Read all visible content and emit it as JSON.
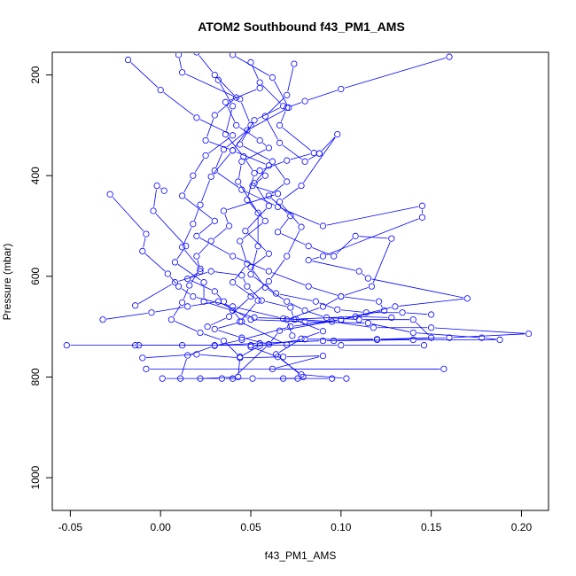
{
  "chart_data": {
    "type": "scatter",
    "title": "ATOM2 Southbound f43_PM1_AMS",
    "xlabel": "f43_PM1_AMS",
    "ylabel": "Pressure (mbar)",
    "xlim": [
      -0.06,
      0.215
    ],
    "ylim": [
      1065,
      155
    ],
    "y_reversed": true,
    "x_ticks": [
      {
        "value": -0.05,
        "label": "-0.05"
      },
      {
        "value": 0.0,
        "label": "0.00"
      },
      {
        "value": 0.05,
        "label": "0.05"
      },
      {
        "value": 0.1,
        "label": "0.10"
      },
      {
        "value": 0.15,
        "label": "0.15"
      },
      {
        "value": 0.2,
        "label": "0.20"
      }
    ],
    "y_ticks": [
      {
        "value": 200,
        "label": "200"
      },
      {
        "value": 400,
        "label": "400"
      },
      {
        "value": 600,
        "label": "600"
      },
      {
        "value": 800,
        "label": "800"
      },
      {
        "value": 1000,
        "label": "1000"
      }
    ],
    "marker": "open-circle",
    "connected": true,
    "color": "#0000ff",
    "grid": false,
    "series": [
      {
        "points": [
          [
            0.16,
            164
          ],
          [
            0.1,
            228
          ],
          [
            0.08,
            252
          ],
          [
            0.07,
            265
          ],
          [
            0.066,
            300
          ],
          [
            0.085,
            355
          ],
          [
            0.07,
            370
          ],
          [
            0.055,
            390
          ],
          [
            0.058,
            400
          ],
          [
            0.051,
            420
          ],
          [
            0.065,
            436
          ],
          [
            0.035,
            470
          ],
          [
            0.038,
            500
          ],
          [
            0.028,
            530
          ],
          [
            0.02,
            560
          ],
          [
            0.022,
            590
          ],
          [
            0.015,
            605
          ],
          [
            0.03,
            630
          ],
          [
            0.035,
            650
          ],
          [
            0.04,
            668
          ],
          [
            0.045,
            690
          ],
          [
            0.03,
            705
          ],
          [
            0.045,
            722
          ],
          [
            0.06,
            735
          ],
          [
            0.05,
            740
          ],
          [
            0.065,
            760
          ],
          [
            0.078,
            795
          ],
          [
            0.103,
            803
          ]
        ]
      },
      {
        "points": [
          [
            0.02,
            155
          ],
          [
            0.03,
            200
          ],
          [
            0.042,
            245
          ],
          [
            0.03,
            280
          ],
          [
            0.025,
            330
          ],
          [
            0.04,
            350
          ],
          [
            0.06,
            380
          ],
          [
            0.052,
            415
          ],
          [
            0.06,
            460
          ],
          [
            0.047,
            510
          ],
          [
            0.06,
            555
          ],
          [
            0.05,
            582
          ],
          [
            0.058,
            622
          ],
          [
            0.07,
            650
          ],
          [
            0.08,
            668
          ],
          [
            0.092,
            682
          ],
          [
            0.11,
            686
          ],
          [
            0.14,
            686
          ],
          [
            0.15,
            722
          ],
          [
            0.12,
            725
          ],
          [
            0.08,
            725
          ],
          [
            0.055,
            738
          ],
          [
            0.044,
            760
          ],
          [
            0.043,
            800
          ],
          [
            0.022,
            803
          ]
        ]
      },
      {
        "points": [
          [
            -0.018,
            170
          ],
          [
            0.0,
            230
          ],
          [
            0.02,
            285
          ],
          [
            0.04,
            320
          ],
          [
            0.025,
            360
          ],
          [
            0.018,
            400
          ],
          [
            0.012,
            440
          ],
          [
            0.03,
            490
          ],
          [
            0.02,
            520
          ],
          [
            0.04,
            560
          ],
          [
            0.06,
            590
          ],
          [
            0.082,
            620
          ],
          [
            0.1,
            640
          ],
          [
            0.121,
            650
          ],
          [
            0.124,
            668
          ],
          [
            0.1,
            686
          ],
          [
            0.072,
            700
          ],
          [
            0.045,
            726
          ],
          [
            0.03,
            738
          ],
          [
            0.015,
            757
          ],
          [
            0.011,
            803
          ]
        ]
      },
      {
        "points": [
          [
            0.04,
            160
          ],
          [
            0.062,
            205
          ],
          [
            0.071,
            265
          ],
          [
            0.048,
            310
          ],
          [
            0.035,
            348
          ],
          [
            0.03,
            390
          ],
          [
            0.045,
            428
          ],
          [
            0.065,
            462
          ],
          [
            0.09,
            500
          ],
          [
            0.145,
            460
          ],
          [
            0.145,
            483
          ],
          [
            0.09,
            560
          ],
          [
            0.082,
            568
          ],
          [
            0.11,
            590
          ],
          [
            0.115,
            604
          ],
          [
            0.17,
            644
          ],
          [
            0.13,
            660
          ],
          [
            0.1,
            686
          ],
          [
            0.066,
            708
          ],
          [
            0.06,
            735
          ],
          [
            0.04,
            803
          ]
        ]
      },
      {
        "points": [
          [
            -0.028,
            437
          ],
          [
            -0.008,
            516
          ],
          [
            -0.01,
            550
          ],
          [
            0.004,
            595
          ],
          [
            0.01,
            620
          ],
          [
            0.018,
            640
          ],
          [
            0.04,
            660
          ],
          [
            0.068,
            684
          ],
          [
            0.095,
            690
          ],
          [
            0.118,
            702
          ],
          [
            0.15,
            702
          ],
          [
            0.204,
            714
          ],
          [
            0.16,
            722
          ],
          [
            0.12,
            726
          ],
          [
            0.09,
            728
          ],
          [
            0.055,
            733
          ],
          [
            0.03,
            737
          ],
          [
            -0.014,
            737
          ]
        ]
      },
      {
        "points": [
          [
            -0.052,
            737
          ],
          [
            -0.012,
            737
          ],
          [
            0.012,
            737
          ],
          [
            0.05,
            737
          ],
          [
            0.1,
            737
          ],
          [
            0.146,
            737
          ]
        ]
      },
      {
        "points": [
          [
            -0.032,
            686
          ],
          [
            -0.005,
            672
          ],
          [
            0.015,
            660
          ],
          [
            0.032,
            650
          ],
          [
            0.05,
            686
          ],
          [
            0.08,
            690
          ],
          [
            0.115,
            693
          ],
          [
            0.14,
            712
          ],
          [
            0.178,
            722
          ],
          [
            0.188,
            726
          ],
          [
            0.14,
            726
          ],
          [
            0.096,
            728
          ]
        ]
      },
      {
        "points": [
          [
            -0.01,
            762
          ],
          [
            0.02,
            755
          ],
          [
            0.044,
            762
          ],
          [
            0.068,
            760
          ],
          [
            0.09,
            758
          ],
          [
            0.062,
            784
          ],
          [
            0.157,
            784
          ],
          [
            -0.008,
            784
          ]
        ]
      },
      {
        "points": [
          [
            0.001,
            803
          ],
          [
            0.034,
            803
          ],
          [
            0.051,
            803
          ],
          [
            0.076,
            803
          ],
          [
            0.068,
            803
          ],
          [
            0.095,
            803
          ]
        ]
      },
      {
        "points": [
          [
            -0.014,
            658
          ],
          [
            0.008,
            612
          ],
          [
            0.028,
            590
          ],
          [
            0.045,
            598
          ],
          [
            0.048,
            620
          ],
          [
            0.056,
            648
          ],
          [
            0.072,
            662
          ],
          [
            0.074,
            686
          ],
          [
            0.09,
            709
          ],
          [
            0.078,
            724
          ],
          [
            0.064,
            755
          ],
          [
            0.079,
            800
          ]
        ]
      },
      {
        "points": [
          [
            0.05,
            175
          ],
          [
            0.055,
            215
          ],
          [
            0.068,
            262
          ],
          [
            0.052,
            290
          ],
          [
            0.044,
            338
          ],
          [
            0.062,
            372
          ],
          [
            0.07,
            412
          ],
          [
            0.06,
            440
          ],
          [
            0.072,
            480
          ],
          [
            0.065,
            512
          ],
          [
            0.082,
            540
          ],
          [
            0.096,
            560
          ],
          [
            0.108,
            520
          ],
          [
            0.128,
            525
          ],
          [
            0.117,
            620
          ],
          [
            0.1,
            640
          ],
          [
            0.09,
            660
          ],
          [
            0.07,
            686
          ],
          [
            0.073,
            718
          ]
        ]
      },
      {
        "points": [
          [
            0.01,
            160
          ],
          [
            0.012,
            195
          ],
          [
            0.044,
            248
          ],
          [
            0.05,
            300
          ],
          [
            0.04,
            350
          ],
          [
            0.028,
            402
          ],
          [
            0.022,
            458
          ],
          [
            0.018,
            496
          ],
          [
            0.012,
            542
          ],
          [
            0.022,
            585
          ],
          [
            0.016,
            618
          ],
          [
            0.012,
            652
          ],
          [
            0.006,
            686
          ],
          [
            0.022,
            712
          ],
          [
            0.035,
            728
          ],
          [
            0.044,
            760
          ]
        ]
      },
      {
        "points": [
          [
            0.032,
            210
          ],
          [
            0.04,
            262
          ],
          [
            0.036,
            318
          ],
          [
            0.046,
            362
          ],
          [
            0.052,
            395
          ],
          [
            0.048,
            448
          ],
          [
            0.058,
            490
          ],
          [
            0.044,
            530
          ],
          [
            0.048,
            575
          ],
          [
            0.04,
            612
          ],
          [
            0.054,
            648
          ],
          [
            0.044,
            690
          ],
          [
            0.07,
            736
          ]
        ]
      },
      {
        "points": [
          [
            0.074,
            178
          ],
          [
            0.07,
            240
          ],
          [
            0.058,
            282
          ],
          [
            0.066,
            335
          ],
          [
            0.08,
            372
          ],
          [
            0.088,
            356
          ],
          [
            0.088,
            356
          ],
          [
            0.098,
            318
          ],
          [
            0.078,
            420
          ],
          [
            0.066,
            452
          ],
          [
            0.078,
            502
          ],
          [
            0.07,
            560
          ],
          [
            0.06,
            610
          ],
          [
            0.05,
            640
          ],
          [
            0.038,
            680
          ],
          [
            0.026,
            700
          ]
        ]
      },
      {
        "points": [
          [
            0.002,
            430
          ],
          [
            -0.002,
            420
          ],
          [
            -0.004,
            470
          ],
          [
            0.014,
            540
          ],
          [
            0.008,
            572
          ],
          [
            0.024,
            612
          ],
          [
            0.024,
            650
          ],
          [
            0.052,
            682
          ],
          [
            0.075,
            685
          ],
          [
            0.108,
            680
          ],
          [
            0.128,
            682
          ]
        ]
      },
      {
        "points": [
          [
            0.055,
            226
          ],
          [
            0.036,
            254
          ],
          [
            0.042,
            300
          ],
          [
            0.055,
            330
          ],
          [
            0.06,
            345
          ],
          [
            0.045,
            372
          ],
          [
            0.043,
            412
          ],
          [
            0.054,
            474
          ],
          [
            0.054,
            540
          ],
          [
            0.05,
            596
          ],
          [
            0.064,
            634
          ],
          [
            0.086,
            650
          ],
          [
            0.098,
            666
          ],
          [
            0.114,
            672
          ],
          [
            0.134,
            672
          ],
          [
            0.15,
            676
          ]
        ]
      }
    ]
  }
}
